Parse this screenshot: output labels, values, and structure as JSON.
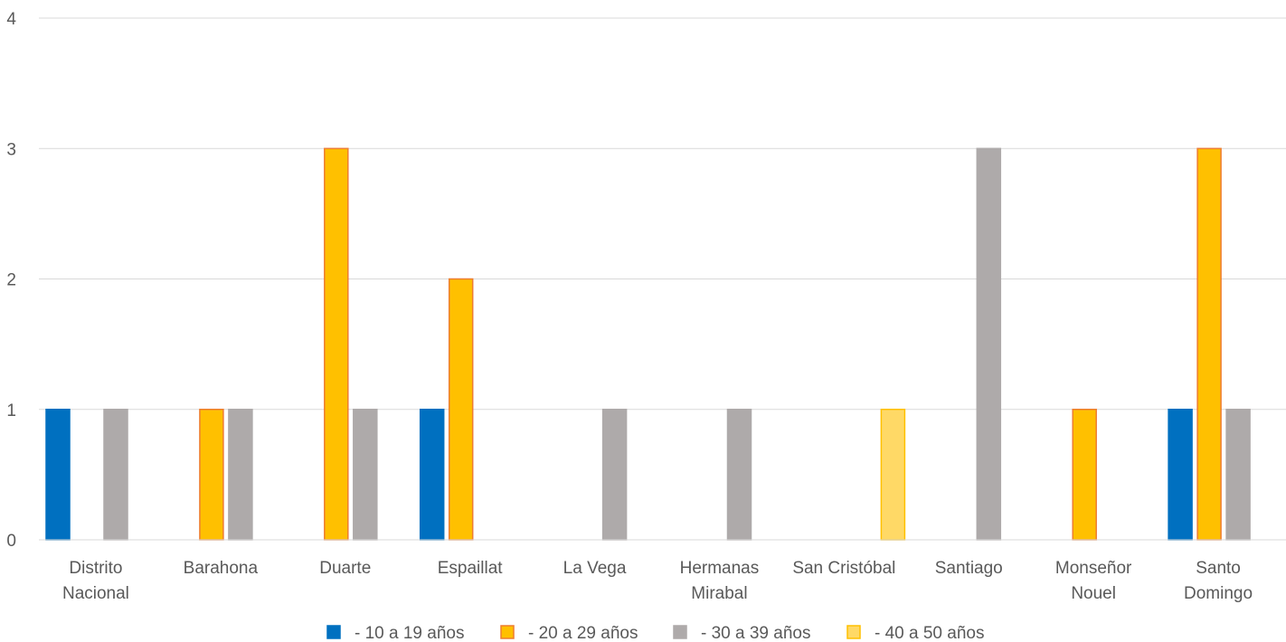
{
  "chart_data": {
    "type": "bar",
    "title": "",
    "xlabel": "",
    "ylabel": "",
    "ylim": [
      0,
      4
    ],
    "yticks": [
      "0",
      "1",
      "2",
      "3",
      "4"
    ],
    "grid": true,
    "legend_position": "bottom",
    "categories": [
      [
        "Distrito",
        "Nacional"
      ],
      [
        "Barahona"
      ],
      [
        "Duarte"
      ],
      [
        "Espaillat"
      ],
      [
        "La Vega"
      ],
      [
        "Hermanas",
        "Mirabal"
      ],
      [
        "San Cristóbal"
      ],
      [
        "Santiago"
      ],
      [
        "Monseñor",
        "Nouel"
      ],
      [
        "Santo",
        "Domingo"
      ]
    ],
    "series": [
      {
        "name": "- 10 a 19 años",
        "color": "#0070C0",
        "edge": "#0070C0",
        "values": [
          1,
          0,
          0,
          1,
          0,
          0,
          0,
          0,
          0,
          1
        ]
      },
      {
        "name": "- 20 a 29 años",
        "color": "#FFC000",
        "edge": "#ED7D31",
        "values": [
          0,
          1,
          3,
          2,
          0,
          0,
          0,
          0,
          1,
          3
        ]
      },
      {
        "name": "- 30 a 39 años",
        "color": "#AEAAAA",
        "edge": "#AEAAAA",
        "values": [
          1,
          1,
          1,
          0,
          1,
          1,
          0,
          3,
          0,
          1
        ]
      },
      {
        "name": "- 40 a 50 años",
        "color": "#FFD966",
        "edge": "#FFC000",
        "values": [
          0,
          0,
          0,
          0,
          0,
          0,
          1,
          0,
          0,
          0
        ]
      }
    ]
  }
}
